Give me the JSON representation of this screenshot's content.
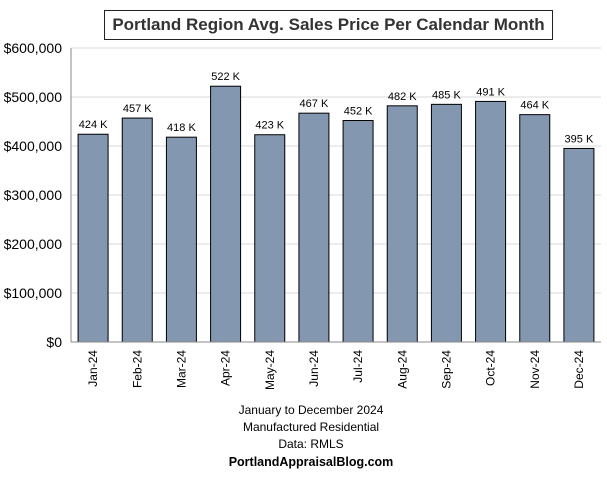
{
  "chart_data": {
    "type": "bar",
    "title": "Portland Region Avg. Sales Price Per Calendar Month",
    "categories": [
      "Jan-24",
      "Feb-24",
      "Mar-24",
      "Apr-24",
      "May-24",
      "Jun-24",
      "Jul-24",
      "Aug-24",
      "Sep-24",
      "Oct-24",
      "Nov-24",
      "Dec-24"
    ],
    "values": [
      424000,
      457000,
      418000,
      522000,
      423000,
      467000,
      452000,
      482000,
      485000,
      491000,
      464000,
      395000
    ],
    "data_labels": [
      "424 K",
      "457 K",
      "418 K",
      "522 K",
      "423 K",
      "467 K",
      "452 K",
      "482 K",
      "485 K",
      "491 K",
      "464 K",
      "395 K"
    ],
    "y_ticks": [
      0,
      100000,
      200000,
      300000,
      400000,
      500000,
      600000
    ],
    "y_tick_labels": [
      "$0",
      "$100,000",
      "$200,000",
      "$300,000",
      "$400,000",
      "$500,000",
      "$600,000"
    ],
    "ylim": [
      0,
      600000
    ],
    "xlabel": "",
    "ylabel": "",
    "grid": true,
    "bar_color": "#8497b0",
    "bar_edge_color": "#000000"
  },
  "captions": {
    "line1": "January to December 2024",
    "line2": "Manufactured Residential",
    "line3": "Data: RMLS",
    "line4": "PortlandAppraisalBlog.com"
  }
}
